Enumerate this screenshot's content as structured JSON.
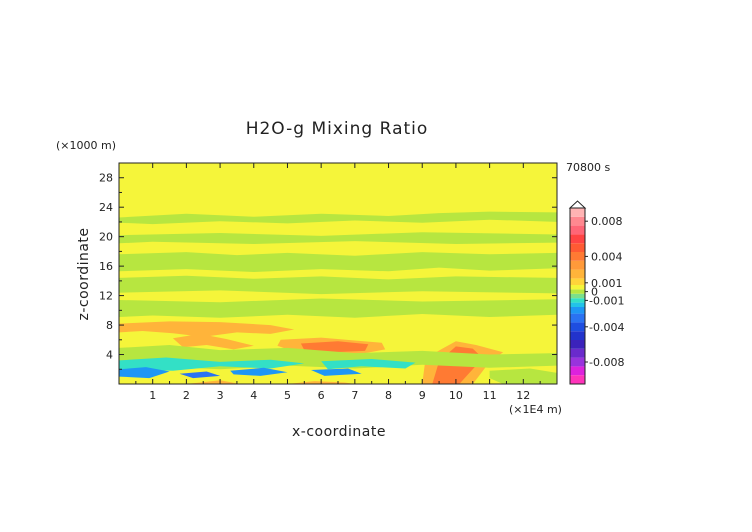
{
  "chart_data": {
    "type": "heatmap",
    "title": "H2O-g Mixing Ratio",
    "xlabel": "x-coordinate",
    "ylabel": "z-coordinate",
    "x_unit": "(×1E4 m)",
    "y_unit": "(×1000 m)",
    "time_label": "70800 s",
    "xlim": [
      0,
      13
    ],
    "ylim": [
      0,
      30
    ],
    "x_ticks": [
      1,
      2,
      3,
      4,
      5,
      6,
      7,
      8,
      9,
      10,
      11,
      12
    ],
    "y_ticks": [
      4,
      8,
      12,
      16,
      20,
      24,
      28
    ],
    "colorbar": {
      "tick_labels": [
        "0.008",
        "0.004",
        "0.001",
        "0",
        "-0.001",
        "-0.004",
        "-0.008"
      ],
      "tick_values": [
        0.008,
        0.004,
        0.001,
        0,
        -0.001,
        -0.004,
        -0.008
      ],
      "levels": [
        {
          "value": -0.01,
          "color": "#ff33bb"
        },
        {
          "value": -0.009,
          "color": "#dd22dd"
        },
        {
          "value": -0.008,
          "color": "#9933dd"
        },
        {
          "value": -0.007,
          "color": "#6a2acc"
        },
        {
          "value": -0.006,
          "color": "#3b22bb"
        },
        {
          "value": -0.005,
          "color": "#2233cc"
        },
        {
          "value": -0.004,
          "color": "#1e4ee0"
        },
        {
          "value": -0.003,
          "color": "#2a72f2"
        },
        {
          "value": -0.002,
          "color": "#1e96f5"
        },
        {
          "value": -0.0015,
          "color": "#22c3e8"
        },
        {
          "value": -0.001,
          "color": "#33e0c6"
        },
        {
          "value": -0.0005,
          "color": "#7be08a"
        },
        {
          "value": 0,
          "color": "#b7e640"
        },
        {
          "value": 0.0005,
          "color": "#f5f53a"
        },
        {
          "value": 0.001,
          "color": "#ffd43a"
        },
        {
          "value": 0.002,
          "color": "#ffb43a"
        },
        {
          "value": 0.003,
          "color": "#ff9a3a"
        },
        {
          "value": 0.004,
          "color": "#ff7a33"
        },
        {
          "value": 0.005,
          "color": "#ff5a33"
        },
        {
          "value": 0.006,
          "color": "#ff4444"
        },
        {
          "value": 0.007,
          "color": "#ff6677"
        },
        {
          "value": 0.008,
          "color": "#ff8890"
        },
        {
          "value": 0.009,
          "color": "#ffb3b3"
        }
      ]
    },
    "regions": [
      {
        "label": "background",
        "color": "#f5f53a",
        "points": [
          [
            0,
            0
          ],
          [
            13,
            0
          ],
          [
            13,
            30
          ],
          [
            0,
            30
          ]
        ]
      },
      {
        "label": "green-band-23km",
        "color": "#b7e640",
        "points": [
          [
            0,
            22.6
          ],
          [
            2,
            23.1
          ],
          [
            4,
            22.7
          ],
          [
            6,
            23.1
          ],
          [
            8,
            22.8
          ],
          [
            9.5,
            23.2
          ],
          [
            11,
            23.4
          ],
          [
            13,
            23.3
          ],
          [
            13,
            22.0
          ],
          [
            11,
            22.3
          ],
          [
            9,
            21.9
          ],
          [
            7,
            22.2
          ],
          [
            5,
            21.8
          ],
          [
            3,
            22.1
          ],
          [
            1,
            21.7
          ],
          [
            0,
            21.9
          ]
        ]
      },
      {
        "label": "green-band-20km",
        "color": "#b7e640",
        "points": [
          [
            0,
            20.2
          ],
          [
            3,
            20.5
          ],
          [
            6,
            20.1
          ],
          [
            9,
            20.6
          ],
          [
            13,
            20.3
          ],
          [
            13,
            19.2
          ],
          [
            10,
            19.0
          ],
          [
            7,
            19.4
          ],
          [
            4,
            19.0
          ],
          [
            1,
            19.3
          ],
          [
            0,
            19.1
          ]
        ]
      },
      {
        "label": "green-band-17km",
        "color": "#b7e640",
        "points": [
          [
            0,
            17.6
          ],
          [
            2,
            17.9
          ],
          [
            3.5,
            17.5
          ],
          [
            5,
            17.8
          ],
          [
            7,
            17.4
          ],
          [
            9,
            17.9
          ],
          [
            11,
            17.6
          ],
          [
            13,
            17.8
          ],
          [
            13,
            15.7
          ],
          [
            11,
            15.4
          ],
          [
            9.5,
            15.8
          ],
          [
            8,
            15.3
          ],
          [
            6,
            15.6
          ],
          [
            4,
            15.2
          ],
          [
            2,
            15.6
          ],
          [
            0,
            15.3
          ]
        ]
      },
      {
        "label": "green-layer-mid",
        "color": "#b7e640",
        "points": [
          [
            0,
            14.4
          ],
          [
            2,
            14.7
          ],
          [
            4,
            14.3
          ],
          [
            6,
            14.6
          ],
          [
            8,
            14.2
          ],
          [
            10,
            14.6
          ],
          [
            13,
            14.4
          ],
          [
            13,
            9.4
          ],
          [
            11,
            9.1
          ],
          [
            9,
            9.5
          ],
          [
            7,
            9.0
          ],
          [
            5,
            9.4
          ],
          [
            3,
            9.0
          ],
          [
            1,
            9.3
          ],
          [
            0,
            9.1
          ]
        ]
      },
      {
        "label": "yellow-band-12km",
        "color": "#f5f53a",
        "points": [
          [
            0,
            12.4
          ],
          [
            3,
            12.7
          ],
          [
            6,
            12.2
          ],
          [
            9,
            12.6
          ],
          [
            13,
            12.3
          ],
          [
            13,
            11.5
          ],
          [
            9,
            11.2
          ],
          [
            6,
            11.6
          ],
          [
            3,
            11.1
          ],
          [
            0,
            11.4
          ]
        ]
      },
      {
        "label": "lower-yellow-layer",
        "color": "#f5f53a",
        "points": [
          [
            0,
            8.6
          ],
          [
            2,
            8.8
          ],
          [
            4,
            8.3
          ],
          [
            6,
            8.7
          ],
          [
            8,
            8.2
          ],
          [
            10,
            8.6
          ],
          [
            13,
            8.4
          ],
          [
            13,
            5.2
          ],
          [
            11,
            5.0
          ],
          [
            9,
            5.4
          ],
          [
            7,
            4.9
          ],
          [
            5,
            5.3
          ],
          [
            3,
            4.8
          ],
          [
            1,
            5.1
          ],
          [
            0,
            4.9
          ]
        ]
      },
      {
        "label": "orange-streak-left",
        "color": "#ffb43a",
        "points": [
          [
            0,
            8.2
          ],
          [
            1.5,
            8.5
          ],
          [
            3,
            8.4
          ],
          [
            4.5,
            8.0
          ],
          [
            5.2,
            7.4
          ],
          [
            4.5,
            6.8
          ],
          [
            3.5,
            7.0
          ],
          [
            2.5,
            6.4
          ],
          [
            1.6,
            6.9
          ],
          [
            0.7,
            7.2
          ],
          [
            0,
            7.0
          ]
        ]
      },
      {
        "label": "orange-wave-a",
        "color": "#ffb43a",
        "points": [
          [
            1.6,
            6.2
          ],
          [
            2.4,
            6.8
          ],
          [
            3.2,
            6.1
          ],
          [
            4.0,
            5.2
          ],
          [
            3.4,
            4.7
          ],
          [
            2.6,
            5.3
          ],
          [
            1.9,
            5.0
          ]
        ]
      },
      {
        "label": "orange-patch-center",
        "color": "#ffb43a",
        "points": [
          [
            4.8,
            6.0
          ],
          [
            6.0,
            6.3
          ],
          [
            7.0,
            5.9
          ],
          [
            7.8,
            5.6
          ],
          [
            7.9,
            4.7
          ],
          [
            7.2,
            4.1
          ],
          [
            6.0,
            4.0
          ],
          [
            5.2,
            4.4
          ],
          [
            4.7,
            5.2
          ]
        ]
      },
      {
        "label": "red-patch-center",
        "color": "#ff7a33",
        "points": [
          [
            5.4,
            5.5
          ],
          [
            6.5,
            5.8
          ],
          [
            7.4,
            5.4
          ],
          [
            7.3,
            4.5
          ],
          [
            6.3,
            4.3
          ],
          [
            5.5,
            4.6
          ]
        ]
      },
      {
        "label": "orange-tower-right",
        "color": "#ffb43a",
        "points": [
          [
            9.0,
            0
          ],
          [
            9.1,
            3.5
          ],
          [
            9.6,
            4.8
          ],
          [
            10.0,
            5.8
          ],
          [
            10.6,
            5.3
          ],
          [
            11.4,
            4.3
          ],
          [
            11.0,
            3.0
          ],
          [
            10.7,
            1.2
          ],
          [
            10.5,
            0
          ]
        ]
      },
      {
        "label": "red-tower-right",
        "color": "#ff7a33",
        "points": [
          [
            9.3,
            0
          ],
          [
            9.5,
            3.1
          ],
          [
            10.0,
            5.1
          ],
          [
            10.5,
            4.8
          ],
          [
            10.8,
            3.5
          ],
          [
            10.4,
            1.5
          ],
          [
            10.1,
            0
          ]
        ]
      },
      {
        "label": "green-low-band",
        "color": "#b7e640",
        "points": [
          [
            0,
            4.9
          ],
          [
            1.5,
            5.3
          ],
          [
            3,
            4.6
          ],
          [
            5,
            4.9
          ],
          [
            7,
            4.2
          ],
          [
            9,
            4.5
          ],
          [
            11,
            4.0
          ],
          [
            13,
            4.2
          ],
          [
            13,
            2.5
          ],
          [
            11,
            2.2
          ],
          [
            9,
            2.6
          ],
          [
            7,
            2.1
          ],
          [
            5,
            2.5
          ],
          [
            3,
            2.0
          ],
          [
            1,
            2.4
          ],
          [
            0,
            2.1
          ]
        ]
      },
      {
        "label": "cyan-band-low-left",
        "color": "#33e0c6",
        "points": [
          [
            0,
            3.2
          ],
          [
            1.4,
            3.6
          ],
          [
            3.0,
            3.0
          ],
          [
            4.5,
            3.3
          ],
          [
            5.5,
            2.8
          ],
          [
            4.5,
            2.1
          ],
          [
            3.0,
            2.4
          ],
          [
            1.6,
            1.8
          ],
          [
            0,
            2.0
          ]
        ]
      },
      {
        "label": "cyan-band-low-right",
        "color": "#33e0c6",
        "points": [
          [
            6.0,
            3.1
          ],
          [
            7.5,
            3.4
          ],
          [
            8.8,
            2.9
          ],
          [
            8.5,
            2.1
          ],
          [
            7.2,
            2.4
          ],
          [
            6.2,
            2.0
          ]
        ]
      },
      {
        "label": "blue-streak-1",
        "color": "#1e96f5",
        "points": [
          [
            0,
            2.0
          ],
          [
            0.8,
            2.3
          ],
          [
            1.5,
            1.7
          ],
          [
            0.9,
            0.8
          ],
          [
            0,
            1.0
          ]
        ]
      },
      {
        "label": "blue-streak-2",
        "color": "#1e96f5",
        "points": [
          [
            3.3,
            1.8
          ],
          [
            4.3,
            2.2
          ],
          [
            5.0,
            1.6
          ],
          [
            4.2,
            1.1
          ],
          [
            3.4,
            1.3
          ]
        ]
      },
      {
        "label": "blue-streak-3",
        "color": "#2a72f2",
        "points": [
          [
            1.8,
            1.4
          ],
          [
            2.6,
            1.7
          ],
          [
            3.0,
            1.1
          ],
          [
            2.2,
            0.8
          ]
        ]
      },
      {
        "label": "blue-streak-4",
        "color": "#1e96f5",
        "points": [
          [
            5.7,
            1.9
          ],
          [
            6.8,
            2.1
          ],
          [
            7.2,
            1.4
          ],
          [
            6.1,
            1.1
          ]
        ]
      },
      {
        "label": "orange-low-left",
        "color": "#ffb43a",
        "points": [
          [
            2.0,
            0
          ],
          [
            3.0,
            0.5
          ],
          [
            3.6,
            0
          ]
        ]
      },
      {
        "label": "orange-low-center",
        "color": "#ffb43a",
        "points": [
          [
            5.0,
            0
          ],
          [
            5.8,
            0.4
          ],
          [
            6.7,
            0.2
          ],
          [
            7.0,
            0
          ]
        ]
      },
      {
        "label": "green-low-right",
        "color": "#b7e640",
        "points": [
          [
            11.0,
            1.8
          ],
          [
            12.2,
            2.1
          ],
          [
            13,
            1.5
          ],
          [
            13,
            0
          ],
          [
            11.4,
            0
          ],
          [
            11.0,
            0.8
          ]
        ]
      }
    ]
  }
}
